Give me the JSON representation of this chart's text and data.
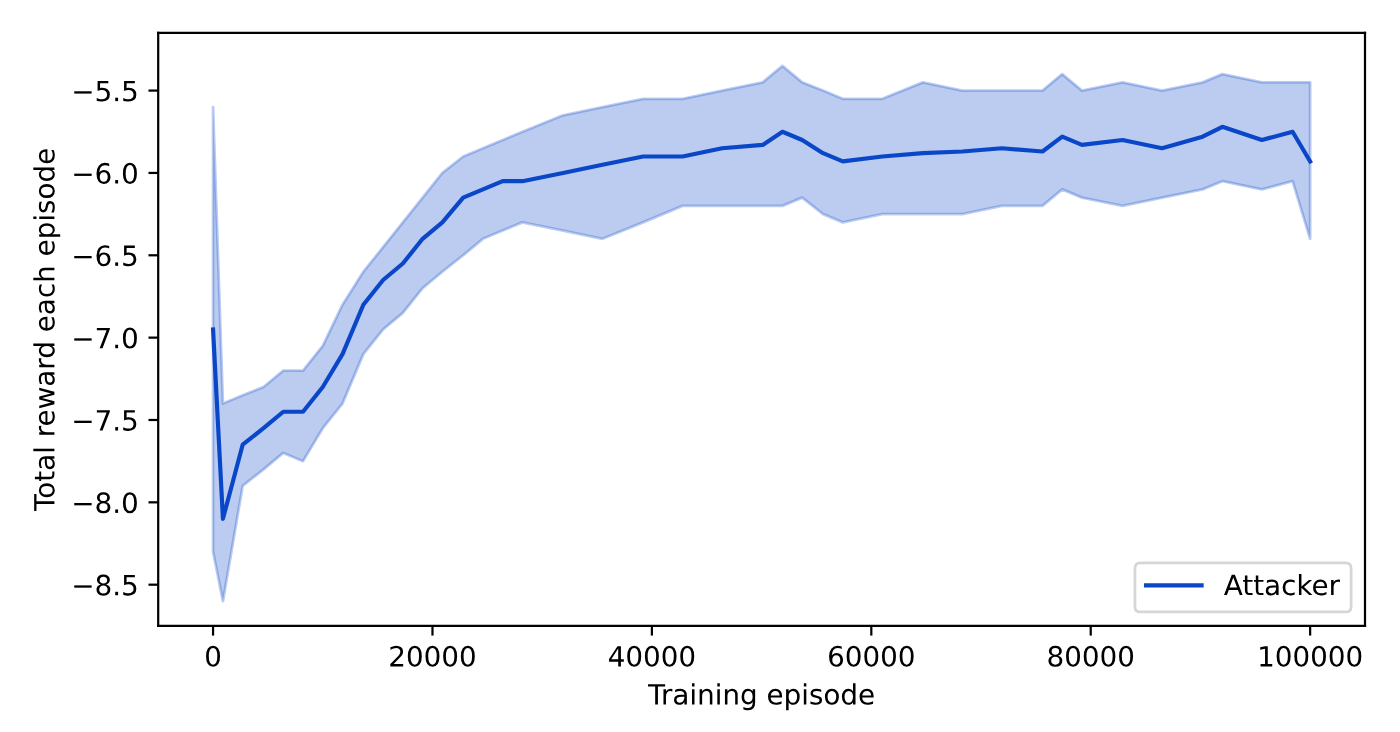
{
  "chart_data": {
    "type": "line",
    "xlabel": "Training episode",
    "ylabel": "Total reward each episode",
    "x": [
      0,
      900,
      2700,
      4600,
      6400,
      8200,
      10000,
      11800,
      13700,
      15500,
      17300,
      19100,
      20900,
      22800,
      24600,
      26400,
      28200,
      31900,
      35500,
      39200,
      42800,
      46400,
      50100,
      51900,
      53700,
      55600,
      57400,
      61000,
      64700,
      68300,
      71900,
      75600,
      77400,
      79200,
      82900,
      86500,
      90200,
      92000,
      95600,
      98400,
      100000
    ],
    "series": [
      {
        "name": "Attacker",
        "color": "#0a47c8",
        "values": [
          -6.95,
          -8.1,
          -7.65,
          -7.55,
          -7.45,
          -7.45,
          -7.3,
          -7.1,
          -6.8,
          -6.65,
          -6.55,
          -6.4,
          -6.3,
          -6.15,
          -6.1,
          -6.05,
          -6.05,
          -6.0,
          -5.95,
          -5.9,
          -5.9,
          -5.85,
          -5.83,
          -5.75,
          -5.8,
          -5.88,
          -5.93,
          -5.9,
          -5.88,
          -5.87,
          -5.85,
          -5.87,
          -5.78,
          -5.83,
          -5.8,
          -5.85,
          -5.78,
          -5.72,
          -5.8,
          -5.75,
          -5.93
        ],
        "upper": [
          -5.6,
          -7.4,
          -7.35,
          -7.3,
          -7.2,
          -7.2,
          -7.05,
          -6.8,
          -6.6,
          -6.45,
          -6.3,
          -6.15,
          -6.0,
          -5.9,
          -5.85,
          -5.8,
          -5.75,
          -5.65,
          -5.6,
          -5.55,
          -5.55,
          -5.5,
          -5.45,
          -5.35,
          -5.45,
          -5.5,
          -5.55,
          -5.55,
          -5.45,
          -5.5,
          -5.5,
          -5.5,
          -5.4,
          -5.5,
          -5.45,
          -5.5,
          -5.45,
          -5.4,
          -5.45,
          -5.45,
          -5.45
        ],
        "lower": [
          -8.3,
          -8.6,
          -7.9,
          -7.8,
          -7.7,
          -7.75,
          -7.55,
          -7.4,
          -7.1,
          -6.95,
          -6.85,
          -6.7,
          -6.6,
          -6.5,
          -6.4,
          -6.35,
          -6.3,
          -6.35,
          -6.4,
          -6.3,
          -6.2,
          -6.2,
          -6.2,
          -6.2,
          -6.15,
          -6.25,
          -6.3,
          -6.25,
          -6.25,
          -6.25,
          -6.2,
          -6.2,
          -6.1,
          -6.15,
          -6.2,
          -6.15,
          -6.1,
          -6.05,
          -6.1,
          -6.05,
          -6.4
        ]
      }
    ],
    "xlim": [
      -5000,
      105000
    ],
    "ylim": [
      -8.75,
      -5.15
    ],
    "xticks": [
      0,
      20000,
      40000,
      60000,
      80000,
      100000
    ],
    "yticks": [
      {
        "value": -8.5,
        "label": "−8.5"
      },
      {
        "value": -8,
        "label": "−8.0"
      },
      {
        "value": -7.5,
        "label": "−7.5"
      },
      {
        "value": -7,
        "label": "−7.0"
      },
      {
        "value": -6.5,
        "label": "−6.5"
      },
      {
        "value": -6,
        "label": "−6.0"
      },
      {
        "value": -5.5,
        "label": "−5.5"
      }
    ],
    "legend": "bottom right",
    "grid": false,
    "marker": "none",
    "line_style": "solid"
  }
}
